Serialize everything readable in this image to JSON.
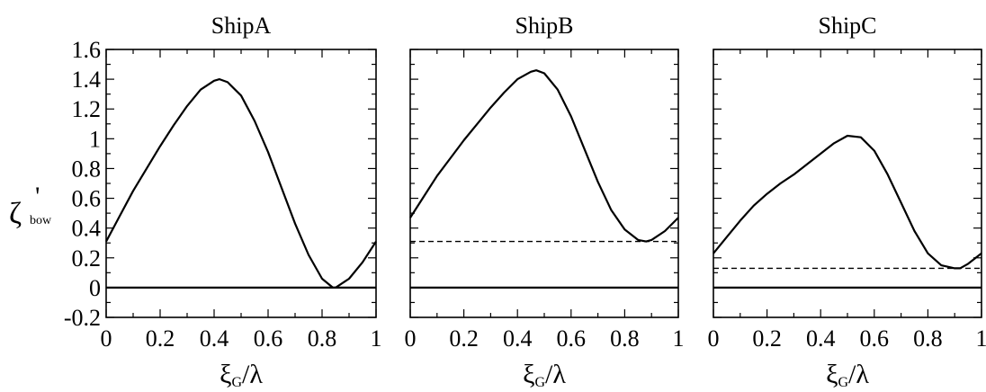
{
  "chart_data": [
    {
      "type": "line",
      "title": "ShipA",
      "xlabel": {
        "main": "ξ",
        "sub": "G",
        "rest": "/λ"
      },
      "ylabel": {
        "main": "ζ",
        "sup": "'",
        "sub": "bow"
      },
      "xlim": [
        0,
        1
      ],
      "ylim": [
        -0.2,
        1.6
      ],
      "x_ticks": [
        "0",
        "0.2",
        "0.4",
        "0.6",
        "0.8",
        "1"
      ],
      "y_ticks": [
        "-0.2",
        "0",
        "0.2",
        "0.4",
        "0.6",
        "0.8",
        "1",
        "1.2",
        "1.4",
        "1.6"
      ],
      "series": [
        {
          "style": "solid",
          "x": [
            0,
            0.05,
            0.1,
            0.15,
            0.2,
            0.25,
            0.3,
            0.35,
            0.4,
            0.42,
            0.45,
            0.5,
            0.55,
            0.6,
            0.65,
            0.7,
            0.75,
            0.8,
            0.84,
            0.85,
            0.9,
            0.95,
            1.0
          ],
          "y": [
            0.31,
            0.48,
            0.65,
            0.8,
            0.95,
            1.09,
            1.22,
            1.33,
            1.39,
            1.4,
            1.38,
            1.29,
            1.12,
            0.91,
            0.67,
            0.43,
            0.22,
            0.06,
            0.0,
            0.0,
            0.06,
            0.17,
            0.31
          ]
        },
        {
          "style": "dashed",
          "x": [
            0,
            1
          ],
          "y": [
            0.0,
            0.0
          ]
        },
        {
          "style": "solid",
          "x": [
            0,
            1
          ],
          "y": [
            0,
            0
          ]
        }
      ]
    },
    {
      "type": "line",
      "title": "ShipB",
      "xlabel": {
        "main": "ξ",
        "sub": "G",
        "rest": "/λ"
      },
      "xlim": [
        0,
        1
      ],
      "ylim": [
        -0.2,
        1.6
      ],
      "x_ticks": [
        "0",
        "0.2",
        "0.4",
        "0.6",
        "0.8",
        "1"
      ],
      "series": [
        {
          "style": "solid",
          "x": [
            0,
            0.05,
            0.1,
            0.15,
            0.2,
            0.25,
            0.3,
            0.35,
            0.4,
            0.45,
            0.47,
            0.5,
            0.55,
            0.6,
            0.65,
            0.7,
            0.75,
            0.8,
            0.85,
            0.88,
            0.9,
            0.95,
            1.0
          ],
          "y": [
            0.47,
            0.61,
            0.75,
            0.87,
            0.99,
            1.1,
            1.21,
            1.31,
            1.4,
            1.45,
            1.46,
            1.44,
            1.33,
            1.15,
            0.93,
            0.71,
            0.52,
            0.39,
            0.32,
            0.31,
            0.32,
            0.38,
            0.47
          ]
        },
        {
          "style": "dashed",
          "x": [
            0,
            1
          ],
          "y": [
            0.31,
            0.31
          ]
        },
        {
          "style": "solid",
          "x": [
            0,
            1
          ],
          "y": [
            0,
            0
          ]
        }
      ]
    },
    {
      "type": "line",
      "title": "ShipC",
      "xlabel": {
        "main": "ξ",
        "sub": "G",
        "rest": "/λ"
      },
      "xlim": [
        0,
        1
      ],
      "ylim": [
        -0.2,
        1.6
      ],
      "x_ticks": [
        "0",
        "0.2",
        "0.4",
        "0.6",
        "0.8",
        "1"
      ],
      "series": [
        {
          "style": "solid",
          "x": [
            0,
            0.05,
            0.1,
            0.15,
            0.2,
            0.25,
            0.3,
            0.35,
            0.4,
            0.45,
            0.5,
            0.55,
            0.6,
            0.65,
            0.7,
            0.75,
            0.8,
            0.85,
            0.9,
            0.92,
            0.95,
            1.0
          ],
          "y": [
            0.23,
            0.34,
            0.45,
            0.55,
            0.63,
            0.7,
            0.76,
            0.83,
            0.9,
            0.97,
            1.02,
            1.01,
            0.92,
            0.76,
            0.57,
            0.38,
            0.23,
            0.15,
            0.13,
            0.13,
            0.16,
            0.23
          ]
        },
        {
          "style": "dashed",
          "x": [
            0,
            1
          ],
          "y": [
            0.13,
            0.13
          ]
        },
        {
          "style": "solid",
          "x": [
            0,
            1
          ],
          "y": [
            0,
            0
          ]
        }
      ]
    }
  ]
}
